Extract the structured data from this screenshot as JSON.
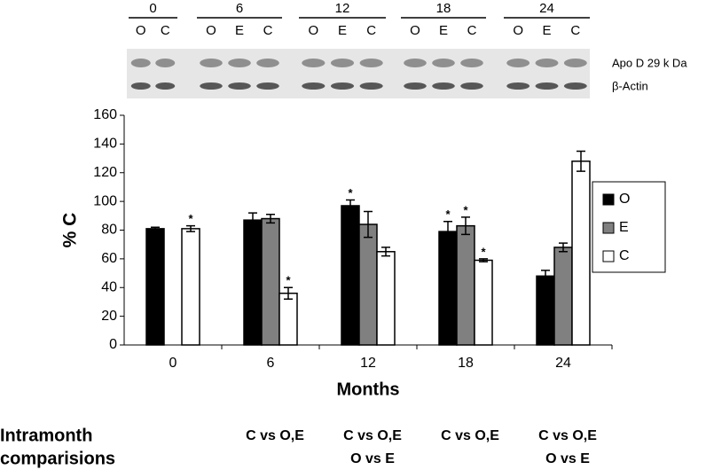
{
  "blot": {
    "groups": [
      {
        "label": "0",
        "lanes": [
          "O",
          "C"
        ]
      },
      {
        "label": "6",
        "lanes": [
          "O",
          "E",
          "C"
        ]
      },
      {
        "label": "12",
        "lanes": [
          "O",
          "E",
          "C"
        ]
      },
      {
        "label": "18",
        "lanes": [
          "O",
          "E",
          "C"
        ]
      },
      {
        "label": "24",
        "lanes": [
          "O",
          "E",
          "C"
        ]
      }
    ],
    "rows": [
      "Apo D 29 k Da",
      "β-Actin"
    ]
  },
  "chart_data": {
    "type": "bar",
    "ylabel": "% C",
    "xlabel": "Months",
    "categories": [
      "0",
      "6",
      "12",
      "18",
      "24"
    ],
    "series": [
      {
        "name": "O",
        "color": "#000000",
        "values": [
          81,
          87,
          97,
          79,
          48
        ],
        "errors": [
          1,
          5,
          4,
          7,
          4
        ],
        "annotations": [
          null,
          null,
          "*",
          "*",
          null
        ]
      },
      {
        "name": "E",
        "color": "#808080",
        "values": [
          null,
          88,
          84,
          83,
          68
        ],
        "errors": [
          null,
          3,
          9,
          6,
          3
        ],
        "annotations": [
          null,
          null,
          null,
          "*",
          null
        ]
      },
      {
        "name": "C",
        "color": "#ffffff",
        "values": [
          81,
          36,
          65,
          59,
          128
        ],
        "errors": [
          2,
          4,
          3,
          1,
          7
        ],
        "annotations": [
          "*",
          "*",
          null,
          "*",
          null
        ]
      }
    ],
    "ylim": [
      0,
      160
    ],
    "yticks": [
      0,
      20,
      40,
      60,
      80,
      100,
      120,
      140,
      160
    ],
    "legend": "right"
  },
  "comparisons": {
    "label": [
      "Intramonth",
      "comparisions"
    ],
    "items": [
      null,
      [
        "C vs O,E"
      ],
      [
        "C vs O,E",
        "O vs E"
      ],
      [
        "C vs O,E"
      ],
      [
        "C vs O,E",
        "O vs E"
      ]
    ]
  }
}
